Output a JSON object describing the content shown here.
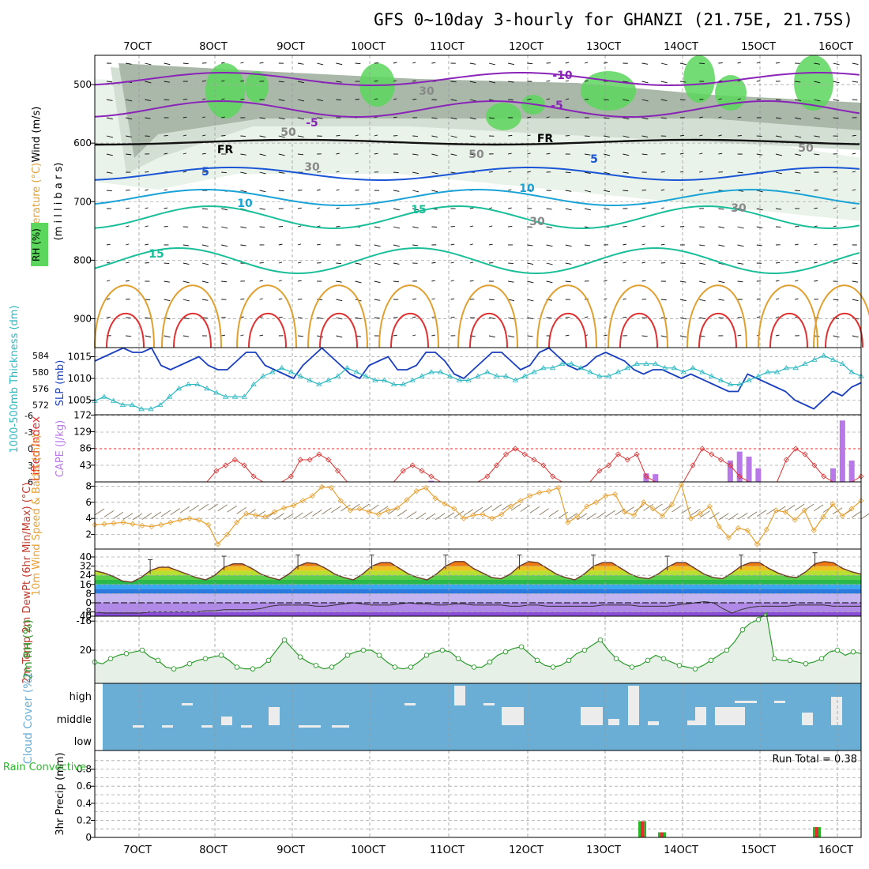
{
  "title": "GFS 0~10day 3-hourly for GHANZI (21.75E, 21.75S)",
  "colors": {
    "rh_dark": "#a9b8a9",
    "rh_mid": "#d3dfd3",
    "rh_light": "#e9f3e9",
    "rh_green": "#5cd65c",
    "temp_purple": "#8a24b8",
    "temp_blue": "#1a55d6",
    "temp_lightblue": "#1aa3d6",
    "temp_teal": "#1abf9a",
    "temp_orange": "#e0a030",
    "temp_red": "#e03030",
    "slp": "#1a3fbf",
    "thickness": "#2ab8c0",
    "lifted": "#e03030",
    "cape": "#b878e8",
    "wind10m": "#e8a030",
    "barb": "#8a7a60",
    "rh2m": "#2a9a2a",
    "rh2m_fill": "#e6f0e6",
    "cloud": "#6aaed6",
    "cloud_bar": "#ececec",
    "precip_total": "#2ab82a",
    "precip_conv": "#e03030"
  },
  "chart_data": [
    {
      "panel": "upper-air",
      "type": "contour",
      "ylabel_temperature": "Temperature (°C)",
      "ylabel_wind": "Wind (m/s)",
      "ylabel_rh": "RH (%)",
      "ylabel_pressure": "(m i l l i b a r s)",
      "x_ticks": [
        "7OCT",
        "8OCT",
        "9OCT",
        "10OCT",
        "11OCT",
        "12OCT",
        "13OCT",
        "14OCT",
        "15OCT",
        "16OCT"
      ],
      "y_ticks": [
        "500",
        "600",
        "700",
        "800",
        "900"
      ],
      "contour_labels": [
        {
          "text": "-10",
          "series": "purple"
        },
        {
          "text": "-5",
          "series": "purple"
        },
        {
          "text": "-5",
          "series": "purple"
        },
        {
          "text": "FR",
          "series": "black"
        },
        {
          "text": "FR",
          "series": "black"
        },
        {
          "text": "5",
          "series": "blue"
        },
        {
          "text": "5",
          "series": "blue"
        },
        {
          "text": "10",
          "series": "lightblue"
        },
        {
          "text": "10",
          "series": "lightblue"
        },
        {
          "text": "15",
          "series": "teal"
        },
        {
          "text": "15",
          "series": "teal"
        },
        {
          "text": "30",
          "series": "rh"
        },
        {
          "text": "30",
          "series": "rh"
        },
        {
          "text": "30",
          "series": "rh"
        },
        {
          "text": "30",
          "series": "rh"
        },
        {
          "text": "50",
          "series": "rh"
        },
        {
          "text": "50",
          "series": "rh"
        },
        {
          "text": "50",
          "series": "rh"
        }
      ]
    },
    {
      "panel": "slp-thickness",
      "type": "line",
      "ylabel_left": "1000-500mb Thickness (dm)",
      "ylabel_right": "SLP (mb)",
      "thickness_ticks": [
        "584",
        "580",
        "576",
        "572"
      ],
      "slp_ticks": [
        "1015",
        "1010",
        "1005"
      ],
      "series": [
        {
          "name": "SLP",
          "values": [
            1014,
            1015,
            1016,
            1017,
            1016,
            1016,
            1017,
            1013,
            1012,
            1013,
            1014,
            1015,
            1013,
            1012,
            1012,
            1014,
            1016,
            1016,
            1013,
            1012,
            1011,
            1010,
            1013,
            1015,
            1017,
            1015,
            1013,
            1011,
            1010,
            1013,
            1014,
            1015,
            1012,
            1012,
            1013,
            1016,
            1016,
            1014,
            1011,
            1010,
            1012,
            1014,
            1016,
            1016,
            1014,
            1012,
            1013,
            1016,
            1017,
            1015,
            1013,
            1012,
            1013,
            1015,
            1016,
            1015,
            1014,
            1012,
            1011,
            1012,
            1012,
            1011,
            1010,
            1011,
            1010,
            1009,
            1008,
            1007,
            1007,
            1011,
            1010,
            1009,
            1008,
            1007,
            1005,
            1004,
            1003,
            1005,
            1007,
            1006,
            1008,
            1009
          ]
        },
        {
          "name": "Thickness",
          "values": [
            573,
            574,
            573,
            572,
            572,
            571,
            571,
            572,
            574,
            576,
            577,
            577,
            576,
            575,
            574,
            574,
            574,
            577,
            579,
            580,
            581,
            580,
            579,
            578,
            577,
            578,
            579,
            581,
            580,
            579,
            578,
            578,
            577,
            577,
            578,
            579,
            580,
            580,
            579,
            578,
            578,
            579,
            580,
            579,
            579,
            578,
            579,
            580,
            581,
            581,
            582,
            582,
            581,
            580,
            579,
            579,
            580,
            581,
            582,
            582,
            582,
            581,
            581,
            580,
            581,
            580,
            579,
            578,
            577,
            577,
            578,
            579,
            580,
            580,
            581,
            581,
            582,
            583,
            584,
            583,
            582,
            580,
            579
          ]
        }
      ]
    },
    {
      "panel": "lifted-cape",
      "type": "line+bar",
      "ylabel_left": "Lifted Index",
      "ylabel_right": "CAPE (J/kg)",
      "lifted_ticks": [
        "-6",
        "-3",
        "0",
        "3",
        "6"
      ],
      "cape_ticks": [
        "172",
        "129",
        "86",
        "43"
      ],
      "series": [
        {
          "name": "Lifted Index",
          "values": [
            7,
            7,
            7,
            6,
            6,
            7,
            7,
            6,
            6,
            6,
            7,
            7,
            6,
            4,
            3,
            2,
            3,
            5,
            7,
            7,
            7,
            5,
            2,
            2,
            1,
            2,
            4,
            7,
            7,
            7,
            6,
            6,
            6,
            4,
            3,
            4,
            5,
            7,
            7,
            7,
            6,
            6,
            5,
            3,
            1,
            0,
            1,
            2,
            3,
            5,
            6,
            6,
            6,
            6,
            4,
            3,
            1,
            2,
            1,
            5,
            6,
            7,
            7,
            6,
            3,
            0,
            1,
            2,
            3,
            5,
            6,
            7,
            7,
            7,
            2,
            0,
            1,
            3,
            5,
            7,
            6,
            7,
            5
          ]
        },
        {
          "name": "CAPE",
          "values": [
            0,
            0,
            0,
            0,
            0,
            0,
            0,
            0,
            0,
            0,
            0,
            0,
            0,
            0,
            0,
            0,
            0,
            0,
            0,
            0,
            0,
            0,
            0,
            0,
            0,
            0,
            0,
            0,
            0,
            0,
            0,
            0,
            0,
            0,
            0,
            0,
            3,
            0,
            0,
            0,
            0,
            0,
            0,
            0,
            0,
            0,
            0,
            0,
            0,
            0,
            0,
            0,
            0,
            0,
            0,
            0,
            0,
            0,
            0,
            22,
            20,
            0,
            0,
            0,
            0,
            0,
            0,
            0,
            55,
            78,
            65,
            35,
            0,
            0,
            0,
            0,
            0,
            0,
            0,
            35,
            158,
            55,
            0
          ]
        }
      ]
    },
    {
      "panel": "wind10m",
      "type": "line",
      "ylabel": "10m Wind Speed & Barbs (m/s)",
      "y_ticks": [
        "8",
        "6",
        "4",
        "2"
      ],
      "series": [
        {
          "name": "10m Wind Speed",
          "values": [
            3.2,
            3.3,
            3.4,
            3.5,
            3.3,
            3.1,
            3.0,
            3.2,
            3.5,
            3.8,
            4.0,
            3.8,
            3.2,
            0.8,
            2.0,
            3.5,
            4.6,
            4.4,
            4.2,
            4.8,
            5.3,
            5.6,
            6.2,
            6.8,
            7.9,
            7.8,
            6.2,
            5.0,
            5.2,
            4.8,
            4.5,
            5.0,
            5.3,
            6.3,
            7.4,
            7.8,
            6.5,
            5.8,
            5.2,
            4.0,
            4.4,
            4.5,
            4.0,
            4.5,
            5.5,
            6.2,
            6.8,
            7.2,
            7.4,
            7.8,
            3.5,
            4.2,
            5.5,
            6.0,
            6.8,
            7.0,
            4.8,
            4.4,
            6.0,
            5.2,
            4.3,
            5.7,
            8.2,
            4.0,
            4.6,
            5.5,
            3.0,
            1.6,
            2.8,
            2.5,
            0.8,
            2.6,
            5.0,
            4.8,
            3.8,
            5.0,
            2.5,
            4.2,
            5.8,
            4.3,
            5.2,
            6.2
          ]
        }
      ]
    },
    {
      "panel": "temp2m",
      "type": "line",
      "ylabel": "2m Temp 2m DewPt (6hr Min/Max) (°C)",
      "y_ticks": [
        "40",
        "32",
        "24",
        "16",
        "8",
        "0",
        "-8",
        "-16"
      ],
      "series": [
        {
          "name": "2m Temp",
          "values": [
            28,
            26,
            23,
            19,
            18,
            22,
            28,
            31,
            31,
            28,
            25,
            22,
            20,
            24,
            31,
            34,
            34,
            30,
            25,
            22,
            20,
            25,
            32,
            35,
            34,
            30,
            25,
            22,
            20,
            25,
            32,
            35,
            35,
            30,
            25,
            22,
            20,
            25,
            32,
            36,
            36,
            30,
            26,
            22,
            21,
            25,
            32,
            36,
            35,
            30,
            25,
            22,
            20,
            25,
            32,
            35,
            35,
            30,
            25,
            22,
            21,
            25,
            31,
            35,
            35,
            30,
            25,
            22,
            21,
            26,
            32,
            35,
            35,
            30,
            26,
            23,
            22,
            27,
            34,
            36,
            35,
            30,
            27,
            25
          ]
        },
        {
          "name": "2m DewPt",
          "values": [
            -8,
            -9,
            -9,
            -9,
            -9,
            -9,
            -8,
            -8,
            -8,
            -8,
            -8,
            -8,
            -7,
            -7,
            -6,
            -6,
            -6,
            -6,
            -5,
            -3,
            -2,
            -2,
            -2,
            -2,
            -3,
            -3,
            -2,
            -1,
            0,
            -1,
            -2,
            -2,
            -2,
            -1,
            0,
            -1,
            -1,
            -2,
            -2,
            -1,
            -1,
            -2,
            -2,
            -2,
            -2,
            -3,
            -3,
            -2,
            -2,
            -3,
            -3,
            -3,
            -3,
            -3,
            -3,
            -2,
            -2,
            -2,
            -2,
            -3,
            -3,
            -3,
            -3,
            -2,
            -1,
            0,
            1,
            0,
            -5,
            -9,
            -6,
            -4,
            -3,
            -3,
            -3,
            -3,
            -2,
            -2,
            -2,
            -2,
            -3,
            -3,
            -3,
            -3
          ]
        }
      ]
    },
    {
      "panel": "rh2m",
      "type": "area",
      "ylabel": "2m RH (%)",
      "y_ticks": [
        "40",
        "20"
      ],
      "series": [
        {
          "name": "2m RH",
          "values": [
            13,
            12,
            15,
            17,
            18,
            19,
            20,
            16,
            14,
            10,
            9,
            10,
            12,
            14,
            15,
            16,
            17,
            14,
            10,
            9,
            9,
            10,
            14,
            20,
            26,
            21,
            16,
            13,
            11,
            9,
            10,
            13,
            17,
            19,
            20,
            20,
            17,
            13,
            10,
            9,
            10,
            13,
            17,
            19,
            20,
            19,
            15,
            12,
            10,
            10,
            13,
            17,
            19,
            21,
            22,
            18,
            14,
            11,
            10,
            11,
            14,
            18,
            20,
            23,
            26,
            20,
            15,
            12,
            10,
            11,
            14,
            17,
            15,
            13,
            11,
            10,
            9,
            11,
            14,
            17,
            20,
            25,
            32,
            36,
            38,
            42,
            15,
            14,
            14,
            13,
            12,
            13,
            15,
            19,
            20,
            17,
            19,
            18
          ]
        }
      ]
    },
    {
      "panel": "cloud",
      "type": "bar",
      "ylabel": "Cloud Cover (%)",
      "y_ticks": [
        "high",
        "middle",
        "low"
      ]
    },
    {
      "panel": "precip",
      "type": "bar",
      "ylabel_left": "Total / Rain Convective",
      "ylabel": "3hr Precip (mm)",
      "run_total_label": "Run Total = 0.38",
      "y_ticks": [
        "0.8",
        "0.6",
        "0.4",
        "0.2",
        "0"
      ],
      "x_ticks": [
        "7OCT",
        "8OCT",
        "9OCT",
        "10OCT",
        "11OCT",
        "12OCT",
        "13OCT",
        "14OCT",
        "15OCT",
        "16OCT"
      ],
      "series": [
        {
          "name": "Total",
          "values": [
            {
              "x": "13OCT 12Z",
              "y": 0.19
            },
            {
              "x": "13OCT 18Z",
              "y": 0.06
            },
            {
              "x": "15OCT 18Z",
              "y": 0.12
            }
          ]
        },
        {
          "name": "Convective",
          "values": [
            {
              "x": "13OCT 12Z",
              "y": 0.19
            },
            {
              "x": "13OCT 18Z",
              "y": 0.06
            },
            {
              "x": "15OCT 18Z",
              "y": 0.12
            }
          ]
        }
      ]
    }
  ]
}
